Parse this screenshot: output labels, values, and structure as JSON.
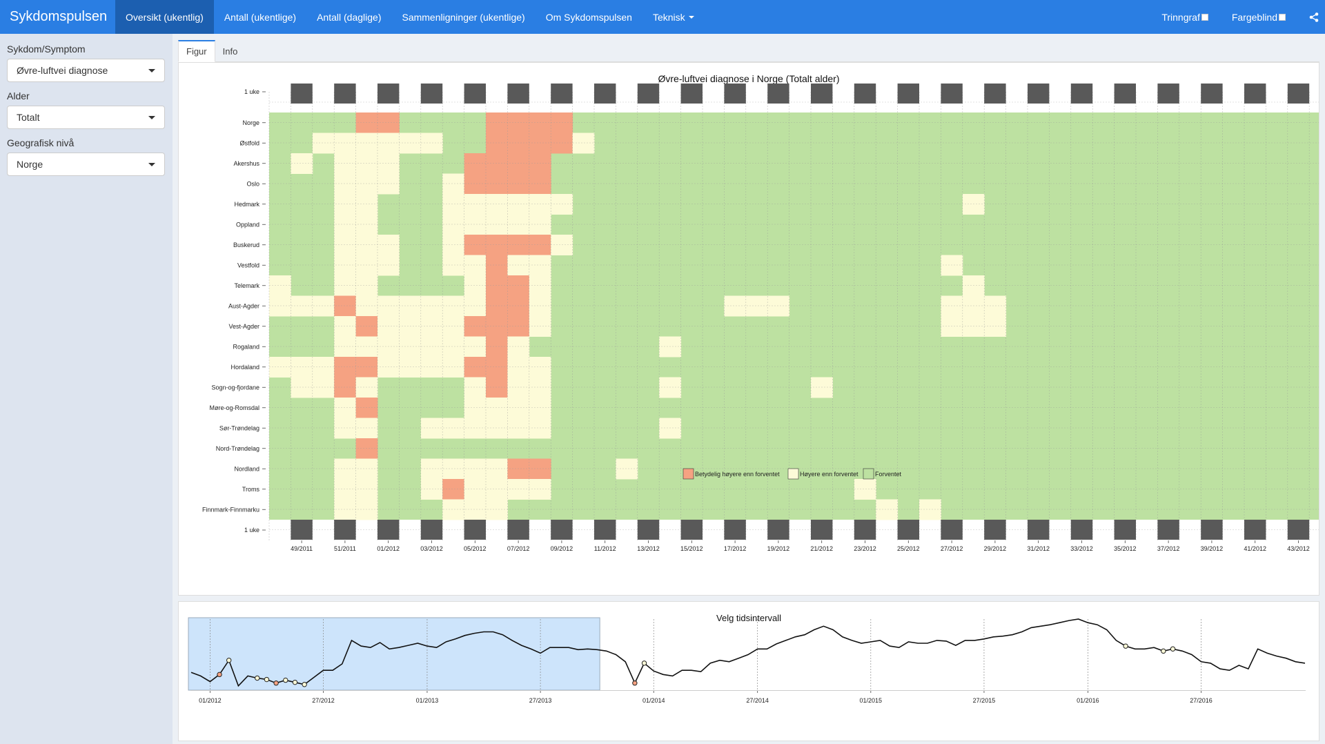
{
  "app": {
    "brand": "Sykdomspulsen"
  },
  "nav": {
    "items": [
      {
        "label": "Oversikt (ukentlig)",
        "active": true
      },
      {
        "label": "Antall (ukentlige)"
      },
      {
        "label": "Antall (daglige)"
      },
      {
        "label": "Sammenligninger (ukentlige)"
      },
      {
        "label": "Om Sykdomspulsen"
      },
      {
        "label": "Teknisk"
      }
    ],
    "toggles": [
      {
        "label": "Trinngraf",
        "checked": false
      },
      {
        "label": "Fargeblind",
        "checked": false
      }
    ],
    "share_icon": "share-icon"
  },
  "sidebar": {
    "disease_label": "Sykdom/Symptom",
    "disease_value": "Øvre-luftvei diagnose",
    "age_label": "Alder",
    "age_value": "Totalt",
    "geo_label": "Geografisk nivå",
    "geo_value": "Norge"
  },
  "tabs": [
    {
      "label": "Figur",
      "active": true
    },
    {
      "label": "Info"
    }
  ],
  "heatmap": {
    "title": "Øvre-luftvei diagnose i Norge (Totalt alder)",
    "week_marker_label": "1 uke",
    "regions": [
      "Norge",
      "Østfold",
      "Akershus",
      "Oslo",
      "Hedmark",
      "Oppland",
      "Buskerud",
      "Vestfold",
      "Telemark",
      "Aust-Agder",
      "Vest-Agder",
      "Rogaland",
      "Hordaland",
      "Sogn-og-fjordane",
      "Møre-og-Romsdal",
      "Sør-Trøndelag",
      "Nord-Trøndelag",
      "Nordland",
      "Troms",
      "Finnmark-Finnmarku"
    ],
    "week_labels": [
      "49/2011",
      "51/2011",
      "01/2012",
      "03/2012",
      "05/2012",
      "07/2012",
      "09/2012",
      "11/2012",
      "13/2012",
      "15/2012",
      "17/2012",
      "19/2012",
      "21/2012",
      "23/2012",
      "25/2012",
      "27/2012",
      "29/2012",
      "31/2012",
      "33/2012",
      "35/2012",
      "37/2012",
      "39/2012",
      "41/2012",
      "43/2012"
    ],
    "first_week": 48,
    "legend": [
      {
        "label": "Betydelig høyere enn forventet",
        "color": "#f5a282"
      },
      {
        "label": "Høyere enn forventet",
        "color": "#fdfbd8"
      },
      {
        "label": "Forventet",
        "color": "#bde1a1"
      }
    ],
    "colors": {
      "0": "#bde1a1",
      "1": "#fdfbd8",
      "2": "#f5a282",
      "marker": "#595959"
    },
    "cells": [
      "0000220000222200000000000000000000000000000000000000000000",
      "0011111100222210000000000000000000000000000000000000000000",
      "0101110002222000000000000000000000000000000000000000000000",
      "0001110012222000000000000000000000000000000000000000000000",
      "0001100011111100000000000000000000000000000000000000000000",
      "0001100011111000000000000000000000000000000000000000000000",
      "0001110012222100000000000000000000000000000000000000000000",
      "0001110011211000000000000000000000000000000000000000000000",
      "1001100001221000000000000000000000000000000000000000000000",
      "1112111111221000000001110000000111000000000000000000000000",
      "0001211112221000000000000000000111000000000000000000000000",
      "0001111111210000000000000000000000000000000000000000000000",
      "1112211112211000000000000000000000000000000000000000000000",
      "0112100001211000000000000000000000000000000000000000000000",
      "0001200001111000000000000000000000000000000000000000000000",
      "0001100111111000000000000000000000000000000000000000000000",
      "0000200000000000000000000000000000000000000000000000000000",
      "0001100111122000000000000000000000000000000000000000000000",
      "0001100121111000000000000000000000000000000000000000000000",
      "0001100011100000000000000000000000000000000000000000000000"
    ],
    "single_cells": [
      {
        "row": 4,
        "col": 32,
        "level": 1
      },
      {
        "row": 11,
        "col": 18,
        "level": 1
      },
      {
        "row": 13,
        "col": 18,
        "level": 1
      },
      {
        "row": 13,
        "col": 25,
        "level": 1
      },
      {
        "row": 15,
        "col": 18,
        "level": 1
      },
      {
        "row": 17,
        "col": 16,
        "level": 1
      },
      {
        "row": 18,
        "col": 27,
        "level": 1
      },
      {
        "row": 19,
        "col": 28,
        "level": 1
      },
      {
        "row": 19,
        "col": 30,
        "level": 1
      },
      {
        "row": 7,
        "col": 31,
        "level": 1
      },
      {
        "row": 8,
        "col": 32,
        "level": 1
      }
    ]
  },
  "overview": {
    "title": "Velg tidsintervall",
    "x_labels": [
      "01/2012",
      "27/2012",
      "01/2013",
      "27/2013",
      "01/2014",
      "27/2014",
      "01/2015",
      "27/2015",
      "01/2016",
      "27/2016"
    ],
    "selection": {
      "from_week": "48/2011",
      "to_week": "43/2012"
    },
    "series": [
      0.25,
      0.2,
      0.12,
      0.22,
      0.42,
      0.06,
      0.2,
      0.17,
      0.15,
      0.1,
      0.14,
      0.11,
      0.08,
      0.18,
      0.28,
      0.28,
      0.37,
      0.7,
      0.62,
      0.6,
      0.67,
      0.58,
      0.6,
      0.63,
      0.66,
      0.62,
      0.6,
      0.68,
      0.72,
      0.77,
      0.8,
      0.82,
      0.82,
      0.78,
      0.7,
      0.63,
      0.58,
      0.52,
      0.6,
      0.6,
      0.6,
      0.57,
      0.58,
      0.57,
      0.55,
      0.5,
      0.4,
      0.1,
      0.38,
      0.27,
      0.22,
      0.2,
      0.28,
      0.28,
      0.26,
      0.38,
      0.42,
      0.4,
      0.45,
      0.5,
      0.58,
      0.58,
      0.65,
      0.7,
      0.75,
      0.78,
      0.85,
      0.9,
      0.85,
      0.75,
      0.7,
      0.66,
      0.68,
      0.7,
      0.62,
      0.6,
      0.68,
      0.66,
      0.66,
      0.7,
      0.69,
      0.63,
      0.7,
      0.7,
      0.72,
      0.75,
      0.76,
      0.78,
      0.82,
      0.88,
      0.9,
      0.92,
      0.95,
      0.98,
      1,
      0.95,
      0.92,
      0.85,
      0.7,
      0.62,
      0.58,
      0.58,
      0.6,
      0.55,
      0.58,
      0.55,
      0.5,
      0.4,
      0.38,
      0.3,
      0.28,
      0.35,
      0.3,
      0.58,
      0.52,
      0.48,
      0.45,
      0.4,
      0.38
    ]
  }
}
